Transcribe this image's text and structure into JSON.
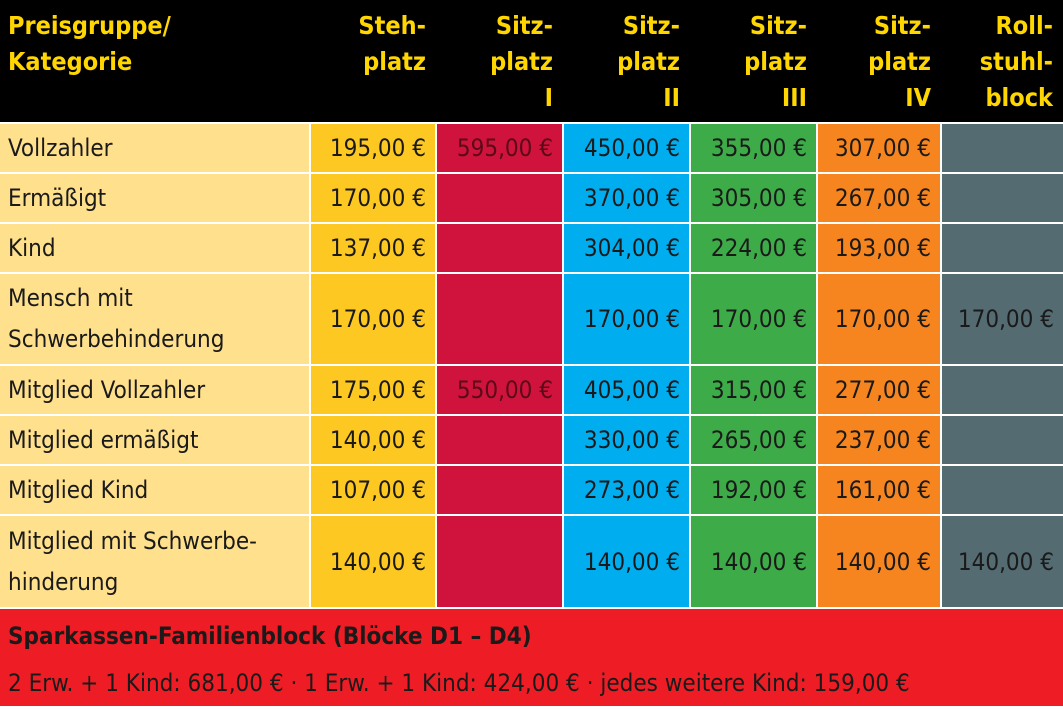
{
  "header": {
    "category": [
      "Preisgruppe/",
      "Kategorie"
    ],
    "columns": [
      [
        "Steh-",
        "platz"
      ],
      [
        "Sitz-",
        "platz",
        "I"
      ],
      [
        "Sitz-",
        "platz",
        "II"
      ],
      [
        "Sitz-",
        "platz",
        "III"
      ],
      [
        "Sitz-",
        "platz",
        "IV"
      ],
      [
        "Roll-",
        "stuhl-",
        "block"
      ]
    ]
  },
  "rows": [
    {
      "label": [
        "Vollzahler"
      ],
      "prices": [
        "195,00 €",
        "595,00 €",
        "450,00 €",
        "355,00 €",
        "307,00 €",
        ""
      ]
    },
    {
      "label": [
        "Ermäßigt"
      ],
      "prices": [
        "170,00 €",
        "",
        "370,00 €",
        "305,00 €",
        "267,00 €",
        ""
      ]
    },
    {
      "label": [
        "Kind"
      ],
      "prices": [
        "137,00 €",
        "",
        "304,00 €",
        "224,00 €",
        "193,00 €",
        ""
      ]
    },
    {
      "label": [
        "Mensch mit",
        "Schwerbehinderung"
      ],
      "prices": [
        "170,00 €",
        "",
        "170,00 €",
        "170,00 €",
        "170,00 €",
        "170,00 €"
      ]
    },
    {
      "label": [
        "Mitglied Vollzahler"
      ],
      "prices": [
        "175,00 €",
        "550,00 €",
        "405,00 €",
        "315,00 €",
        "277,00 €",
        ""
      ]
    },
    {
      "label": [
        "Mitglied ermäßigt"
      ],
      "prices": [
        "140,00 €",
        "",
        "330,00 €",
        "265,00 €",
        "237,00 €",
        ""
      ]
    },
    {
      "label": [
        "Mitglied Kind"
      ],
      "prices": [
        "107,00 €",
        "",
        "273,00 €",
        "192,00 €",
        "161,00 €",
        ""
      ]
    },
    {
      "label": [
        "Mitglied mit Schwerbe-",
        "hinderung"
      ],
      "prices": [
        "140,00 €",
        "",
        "140,00 €",
        "140,00 €",
        "140,00 €",
        "140,00 €"
      ]
    }
  ],
  "footer": {
    "title": "Sparkassen-Familienblock (Blöcke D1 – D4)",
    "text": "2 Erw. + 1 Kind: 681,00 € · 1 Erw. + 1 Kind: 424,00 € · jedes weitere Kind: 159,00 €"
  },
  "colors": {
    "header_bg": "#000000",
    "header_text": "#ffd600",
    "category_bg": "#ffe08c",
    "stehplatz": "#fec823",
    "sitzplatz_1": "#cf133c",
    "sitzplatz_2": "#00aeef",
    "sitzplatz_3": "#3cab48",
    "sitzplatz_4": "#f7851f",
    "rollstuhlblock": "#546b72",
    "footer_bg": "#ee1d25"
  }
}
